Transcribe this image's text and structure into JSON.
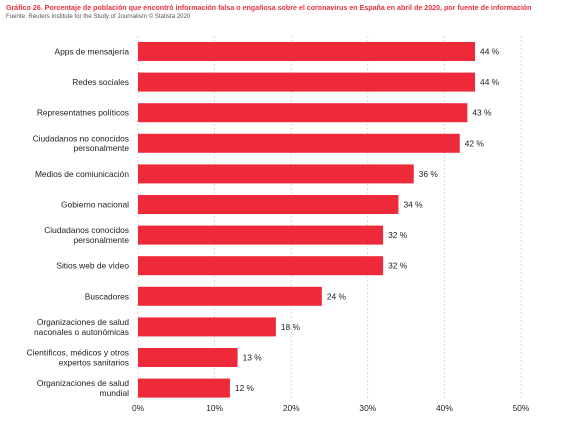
{
  "header": {
    "title": "Gráfico 26. Porcentaje de población que encontró información falsa o engañosa sobre el coronavirus en España en abril de 2020, por fuente de información",
    "source": "Fuente: Reuters Institute for the Study of Journalism © Statista 2020"
  },
  "chart_data": {
    "type": "bar",
    "orientation": "horizontal",
    "categories": [
      [
        "Apps de mensajería"
      ],
      [
        "Redes sociales"
      ],
      [
        "Representatnes políticos"
      ],
      [
        "Ciudadanos no conocidos",
        "personalmente"
      ],
      [
        "Medios de comiunicación"
      ],
      [
        "Gobierno nacional"
      ],
      [
        "Ciudadanos conocidos",
        "personalmente"
      ],
      [
        "Sitios web de vídeo"
      ],
      [
        "Buscadores"
      ],
      [
        "Organizaciones de salud",
        "naconales o autonómicas"
      ],
      [
        "Científicos, médicos y otros",
        "expertos sanitarios"
      ],
      [
        "Organizaciones de salud",
        "mundial"
      ]
    ],
    "values": [
      44,
      44,
      43,
      42,
      36,
      34,
      32,
      32,
      24,
      18,
      13,
      12
    ],
    "value_labels": [
      "44 %",
      "44 %",
      "43 %",
      "42 %",
      "36 %",
      "34 %",
      "32 %",
      "32 %",
      "24 %",
      "18 %",
      "13 %",
      "12 %"
    ],
    "xlim": [
      0,
      50
    ],
    "x_ticks": [
      0,
      10,
      20,
      30,
      40,
      50
    ],
    "x_tick_labels": [
      "0%",
      "10%",
      "20%",
      "30%",
      "40%",
      "50%"
    ],
    "bar_color": "#ee2a3a",
    "grid": true,
    "gridline_style": "dashed vertical",
    "legend": "none"
  }
}
